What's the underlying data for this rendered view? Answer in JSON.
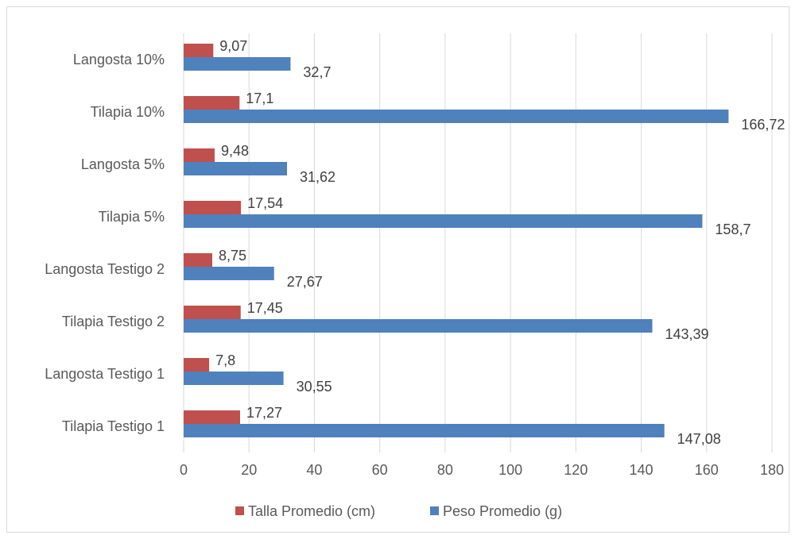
{
  "chart_data": {
    "type": "bar",
    "orientation": "horizontal",
    "categories": [
      "Tilapia Testigo 1",
      "Langosta Testigo 1",
      "Tilapia Testigo 2",
      "Langosta Testigo 2",
      "Tilapia 5%",
      "Langosta 5%",
      "Tilapia 10%",
      "Langosta 10%"
    ],
    "series": [
      {
        "name": "Talla Promedio (cm)",
        "color": "#c0504d",
        "values": [
          17.27,
          7.8,
          17.45,
          8.75,
          17.54,
          9.48,
          17.1,
          9.07
        ],
        "labels": [
          "17,27",
          "7,8",
          "17,45",
          "8,75",
          "17,54",
          "9,48",
          "17,1",
          "9,07"
        ]
      },
      {
        "name": "Peso Promedio (g)",
        "color": "#4f81bd",
        "values": [
          147.08,
          30.55,
          143.39,
          27.67,
          158.7,
          31.62,
          166.72,
          32.7
        ],
        "labels": [
          "147,08",
          "30,55",
          "143,39",
          "27,67",
          "158,7",
          "31,62",
          "166,72",
          "32,7"
        ]
      }
    ],
    "xlim": [
      0,
      180
    ],
    "xticks": [
      "0",
      "20",
      "40",
      "60",
      "80",
      "100",
      "120",
      "140",
      "160",
      "180"
    ],
    "grid": true,
    "legend_position": "bottom"
  }
}
